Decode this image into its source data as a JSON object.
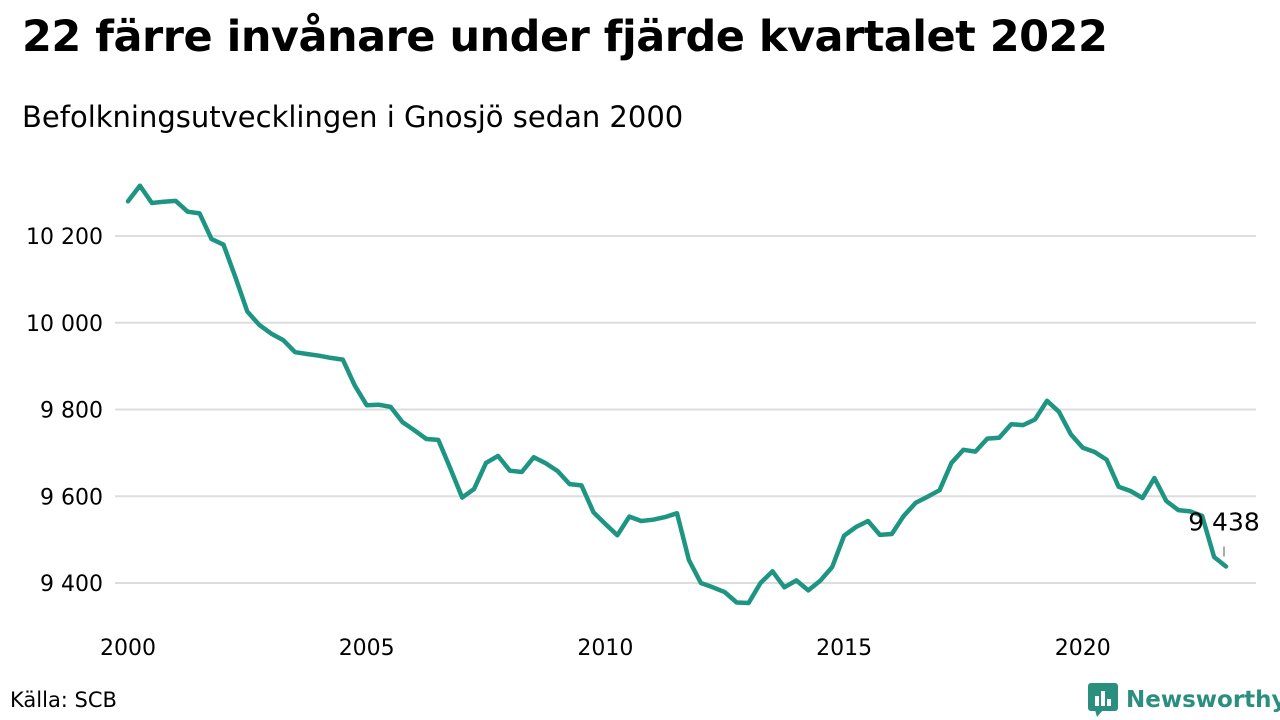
{
  "header": {
    "title": "22 färre invånare under fjärde kvartalet 2022",
    "subtitle": "Befolkningsutvecklingen i Gnosjö sedan 2000"
  },
  "footer": {
    "source": "Källa: SCB",
    "brand": "Newsworthy",
    "brand_icon": "bar-chart-icon"
  },
  "colors": {
    "line": "#1e9583",
    "grid": "#dddddd",
    "brand": "#2b8f80"
  },
  "chart_data": {
    "type": "line",
    "title": "22 färre invånare under fjärde kvartalet 2022",
    "subtitle": "Befolkningsutvecklingen i Gnosjö sedan 2000",
    "xlabel": "",
    "ylabel": "",
    "xlim": [
      2000,
      2023.4
    ],
    "ylim": [
      9300,
      10340
    ],
    "grid": true,
    "legend": "none",
    "x_ticks": [
      2000,
      2005,
      2010,
      2015,
      2020
    ],
    "x_tick_labels": [
      "2000",
      "2005",
      "2010",
      "2015",
      "2020"
    ],
    "y_ticks": [
      9400,
      9600,
      9800,
      10000,
      10200
    ],
    "y_tick_labels": [
      "9 400",
      "9 600",
      "9 800",
      "10 000",
      "10 200"
    ],
    "annotation": {
      "x": 2023.0,
      "value": 9438,
      "label": "9 438"
    },
    "series": [
      {
        "x": [
          2000.0,
          2000.25,
          2000.5,
          2000.75,
          2001.0,
          2001.25,
          2001.5,
          2001.75,
          2002.0,
          2002.25,
          2002.5,
          2002.75,
          2003.0,
          2003.25,
          2003.5,
          2003.75,
          2004.0,
          2004.25,
          2004.5,
          2004.75,
          2005.0,
          2005.25,
          2005.5,
          2005.75,
          2006.0,
          2006.25,
          2006.5,
          2006.75,
          2007.0,
          2007.25,
          2007.5,
          2007.75,
          2008.0,
          2008.25,
          2008.5,
          2008.75,
          2009.0,
          2009.25,
          2009.5,
          2009.75,
          2010.0,
          2010.25,
          2010.5,
          2010.75,
          2011.0,
          2011.25,
          2011.5,
          2011.75,
          2012.0,
          2012.25,
          2012.5,
          2012.75,
          2013.0,
          2013.25,
          2013.5,
          2013.75,
          2014.0,
          2014.25,
          2014.5,
          2014.75,
          2015.0,
          2015.25,
          2015.5,
          2015.75,
          2016.0,
          2016.25,
          2016.5,
          2016.75,
          2017.0,
          2017.25,
          2017.5,
          2017.75,
          2018.0,
          2018.25,
          2018.5,
          2018.75,
          2019.0,
          2019.25,
          2019.5,
          2019.75,
          2020.0,
          2020.25,
          2020.5,
          2020.75,
          2021.0,
          2021.25,
          2021.5,
          2021.75,
          2022.0,
          2022.25,
          2022.5,
          2022.75,
          2023.0
        ],
        "values": [
          10280,
          10316,
          10276,
          10279,
          10281,
          10256,
          10252,
          10193,
          10180,
          10105,
          10026,
          9995,
          9975,
          9960,
          9932,
          9928,
          9924,
          9919,
          9915,
          9855,
          9810,
          9811,
          9806,
          9771,
          9752,
          9732,
          9730,
          9665,
          9597,
          9617,
          9677,
          9693,
          9659,
          9656,
          9690,
          9676,
          9658,
          9628,
          9625,
          9563,
          9536,
          9510,
          9553,
          9543,
          9546,
          9552,
          9561,
          9453,
          9400,
          9390,
          9379,
          9355,
          9354,
          9400,
          9427,
          9390,
          9406,
          9383,
          9405,
          9437,
          9509,
          9529,
          9543,
          9511,
          9513,
          9555,
          9585,
          9599,
          9614,
          9677,
          9707,
          9703,
          9733,
          9735,
          9766,
          9764,
          9777,
          9820,
          9795,
          9743,
          9712,
          9702,
          9684,
          9622,
          9612,
          9596,
          9642,
          9589,
          9568,
          9565,
          9555,
          9460,
          9438
        ]
      }
    ]
  }
}
